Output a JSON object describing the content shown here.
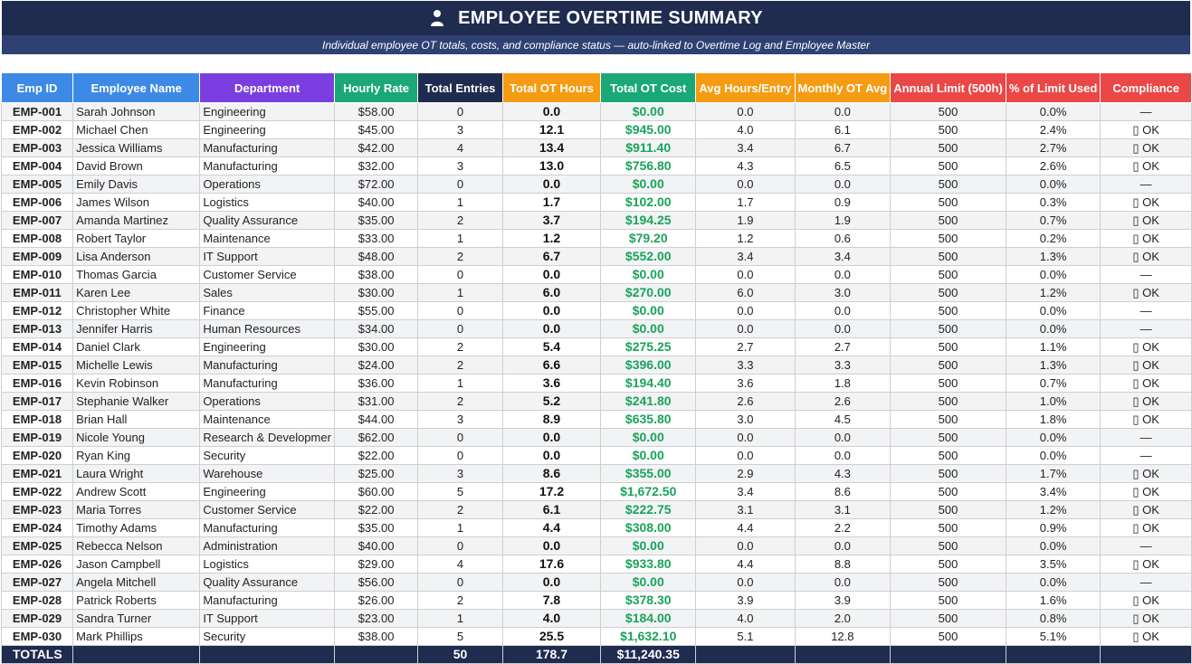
{
  "title": "EMPLOYEE OVERTIME SUMMARY",
  "subtitle": "Individual employee OT totals, costs, and compliance status — auto-linked to Overtime Log and Employee Master",
  "colors": {
    "title_bg": "#1f2b4f",
    "subtitle_bg": "#2f4172",
    "cost_text": "#1aa35a"
  },
  "columns": [
    {
      "label": "Emp ID",
      "color": "#3d8ae6"
    },
    {
      "label": "Employee Name",
      "color": "#3d8ae6"
    },
    {
      "label": "Department",
      "color": "#7a3ee0"
    },
    {
      "label": "Hourly Rate",
      "color": "#1aa877"
    },
    {
      "label": "Total Entries",
      "color": "#1f2b4f"
    },
    {
      "label": "Total OT Hours",
      "color": "#f59c12"
    },
    {
      "label": "Total OT Cost",
      "color": "#1aa877"
    },
    {
      "label": "Avg Hours/Entry",
      "color": "#f59c12"
    },
    {
      "label": "Monthly OT Avg",
      "color": "#f59c12"
    },
    {
      "label": "Annual Limit (500h)",
      "color": "#ea4747"
    },
    {
      "label": "% of Limit Used",
      "color": "#ea4747"
    },
    {
      "label": "Compliance",
      "color": "#ea4747"
    }
  ],
  "rows": [
    [
      "EMP-001",
      "Sarah Johnson",
      "Engineering",
      "$58.00",
      "0",
      "0.0",
      "$0.00",
      "0.0",
      "0.0",
      "500",
      "0.0%",
      "—"
    ],
    [
      "EMP-002",
      "Michael Chen",
      "Engineering",
      "$45.00",
      "3",
      "12.1",
      "$945.00",
      "4.0",
      "6.1",
      "500",
      "2.4%",
      "▯ OK"
    ],
    [
      "EMP-003",
      "Jessica Williams",
      "Manufacturing",
      "$42.00",
      "4",
      "13.4",
      "$911.40",
      "3.4",
      "6.7",
      "500",
      "2.7%",
      "▯ OK"
    ],
    [
      "EMP-004",
      "David Brown",
      "Manufacturing",
      "$32.00",
      "3",
      "13.0",
      "$756.80",
      "4.3",
      "6.5",
      "500",
      "2.6%",
      "▯ OK"
    ],
    [
      "EMP-005",
      "Emily Davis",
      "Operations",
      "$72.00",
      "0",
      "0.0",
      "$0.00",
      "0.0",
      "0.0",
      "500",
      "0.0%",
      "—"
    ],
    [
      "EMP-006",
      "James Wilson",
      "Logistics",
      "$40.00",
      "1",
      "1.7",
      "$102.00",
      "1.7",
      "0.9",
      "500",
      "0.3%",
      "▯ OK"
    ],
    [
      "EMP-007",
      "Amanda Martinez",
      "Quality Assurance",
      "$35.00",
      "2",
      "3.7",
      "$194.25",
      "1.9",
      "1.9",
      "500",
      "0.7%",
      "▯ OK"
    ],
    [
      "EMP-008",
      "Robert Taylor",
      "Maintenance",
      "$33.00",
      "1",
      "1.2",
      "$79.20",
      "1.2",
      "0.6",
      "500",
      "0.2%",
      "▯ OK"
    ],
    [
      "EMP-009",
      "Lisa Anderson",
      "IT Support",
      "$48.00",
      "2",
      "6.7",
      "$552.00",
      "3.4",
      "3.4",
      "500",
      "1.3%",
      "▯ OK"
    ],
    [
      "EMP-010",
      "Thomas Garcia",
      "Customer Service",
      "$38.00",
      "0",
      "0.0",
      "$0.00",
      "0.0",
      "0.0",
      "500",
      "0.0%",
      "—"
    ],
    [
      "EMP-011",
      "Karen Lee",
      "Sales",
      "$30.00",
      "1",
      "6.0",
      "$270.00",
      "6.0",
      "3.0",
      "500",
      "1.2%",
      "▯ OK"
    ],
    [
      "EMP-012",
      "Christopher White",
      "Finance",
      "$55.00",
      "0",
      "0.0",
      "$0.00",
      "0.0",
      "0.0",
      "500",
      "0.0%",
      "—"
    ],
    [
      "EMP-013",
      "Jennifer Harris",
      "Human Resources",
      "$34.00",
      "0",
      "0.0",
      "$0.00",
      "0.0",
      "0.0",
      "500",
      "0.0%",
      "—"
    ],
    [
      "EMP-014",
      "Daniel Clark",
      "Engineering",
      "$30.00",
      "2",
      "5.4",
      "$275.25",
      "2.7",
      "2.7",
      "500",
      "1.1%",
      "▯ OK"
    ],
    [
      "EMP-015",
      "Michelle Lewis",
      "Manufacturing",
      "$24.00",
      "2",
      "6.6",
      "$396.00",
      "3.3",
      "3.3",
      "500",
      "1.3%",
      "▯ OK"
    ],
    [
      "EMP-016",
      "Kevin Robinson",
      "Manufacturing",
      "$36.00",
      "1",
      "3.6",
      "$194.40",
      "3.6",
      "1.8",
      "500",
      "0.7%",
      "▯ OK"
    ],
    [
      "EMP-017",
      "Stephanie Walker",
      "Operations",
      "$31.00",
      "2",
      "5.2",
      "$241.80",
      "2.6",
      "2.6",
      "500",
      "1.0%",
      "▯ OK"
    ],
    [
      "EMP-018",
      "Brian Hall",
      "Maintenance",
      "$44.00",
      "3",
      "8.9",
      "$635.80",
      "3.0",
      "4.5",
      "500",
      "1.8%",
      "▯ OK"
    ],
    [
      "EMP-019",
      "Nicole Young",
      "Research & Developmer",
      "$62.00",
      "0",
      "0.0",
      "$0.00",
      "0.0",
      "0.0",
      "500",
      "0.0%",
      "—"
    ],
    [
      "EMP-020",
      "Ryan King",
      "Security",
      "$22.00",
      "0",
      "0.0",
      "$0.00",
      "0.0",
      "0.0",
      "500",
      "0.0%",
      "—"
    ],
    [
      "EMP-021",
      "Laura Wright",
      "Warehouse",
      "$25.00",
      "3",
      "8.6",
      "$355.00",
      "2.9",
      "4.3",
      "500",
      "1.7%",
      "▯ OK"
    ],
    [
      "EMP-022",
      "Andrew Scott",
      "Engineering",
      "$60.00",
      "5",
      "17.2",
      "$1,672.50",
      "3.4",
      "8.6",
      "500",
      "3.4%",
      "▯ OK"
    ],
    [
      "EMP-023",
      "Maria Torres",
      "Customer Service",
      "$22.00",
      "2",
      "6.1",
      "$222.75",
      "3.1",
      "3.1",
      "500",
      "1.2%",
      "▯ OK"
    ],
    [
      "EMP-024",
      "Timothy Adams",
      "Manufacturing",
      "$35.00",
      "1",
      "4.4",
      "$308.00",
      "4.4",
      "2.2",
      "500",
      "0.9%",
      "▯ OK"
    ],
    [
      "EMP-025",
      "Rebecca Nelson",
      "Administration",
      "$40.00",
      "0",
      "0.0",
      "$0.00",
      "0.0",
      "0.0",
      "500",
      "0.0%",
      "—"
    ],
    [
      "EMP-026",
      "Jason Campbell",
      "Logistics",
      "$29.00",
      "4",
      "17.6",
      "$933.80",
      "4.4",
      "8.8",
      "500",
      "3.5%",
      "▯ OK"
    ],
    [
      "EMP-027",
      "Angela Mitchell",
      "Quality Assurance",
      "$56.00",
      "0",
      "0.0",
      "$0.00",
      "0.0",
      "0.0",
      "500",
      "0.0%",
      "—"
    ],
    [
      "EMP-028",
      "Patrick Roberts",
      "Manufacturing",
      "$26.00",
      "2",
      "7.8",
      "$378.30",
      "3.9",
      "3.9",
      "500",
      "1.6%",
      "▯ OK"
    ],
    [
      "EMP-029",
      "Sandra Turner",
      "IT Support",
      "$23.00",
      "1",
      "4.0",
      "$184.00",
      "4.0",
      "2.0",
      "500",
      "0.8%",
      "▯ OK"
    ],
    [
      "EMP-030",
      "Mark Phillips",
      "Security",
      "$38.00",
      "5",
      "25.5",
      "$1,632.10",
      "5.1",
      "12.8",
      "500",
      "5.1%",
      "▯ OK"
    ]
  ],
  "totals": {
    "label": "TOTALS",
    "entries": "50",
    "hours": "178.7",
    "cost": "$11,240.35"
  }
}
